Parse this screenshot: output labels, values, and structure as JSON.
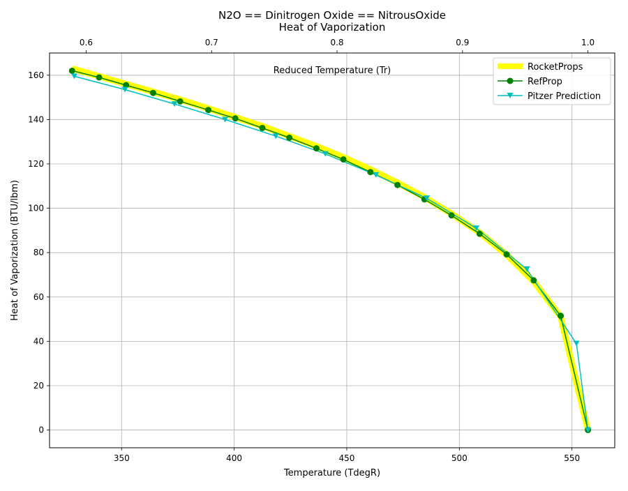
{
  "chart_data": {
    "type": "line",
    "title_line1": "N2O == Dinitrogen Oxide == NitrousOxide",
    "title_line2": "Heat of Vaporization",
    "xlabel": "Temperature (TdegR)",
    "ylabel": "Heat of Vaporization (BTU/lbm)",
    "top_xlabel": "Reduced Temperature (Tr)",
    "xlim": [
      318,
      569
    ],
    "ylim": [
      -8,
      170
    ],
    "x_ticks": [
      350,
      400,
      450,
      500,
      550
    ],
    "y_ticks": [
      0,
      20,
      40,
      60,
      80,
      100,
      120,
      140,
      160
    ],
    "top_x_ticks": [
      0.6,
      0.7,
      0.8,
      0.9,
      1.0
    ],
    "top_x_tick_labels": [
      "0.6",
      "0.7",
      "0.8",
      "0.9",
      "1.0"
    ],
    "reduced_temperature_reference": 557.1,
    "grid": true,
    "legend_position": "top-right",
    "series": [
      {
        "name": "RocketProps",
        "color": "#ffff00",
        "style": "thick-line",
        "x": [
          328.0,
          340.0,
          352.0,
          364.0,
          376.0,
          388.5,
          400.5,
          412.5,
          424.5,
          436.5,
          448.5,
          460.5,
          472.5,
          484.5,
          496.5,
          509.0,
          521.0,
          533.0,
          545.0,
          557.1
        ],
        "y": [
          163,
          159.5,
          156,
          152.5,
          149,
          145,
          141,
          137,
          132.5,
          128,
          123,
          117.5,
          111.5,
          105,
          97.5,
          89,
          79,
          67,
          51,
          0
        ]
      },
      {
        "name": "RefProp",
        "color": "#008000",
        "marker": "circle",
        "x": [
          328.0,
          340.0,
          352.0,
          364.0,
          376.0,
          388.5,
          400.5,
          412.5,
          424.5,
          436.5,
          448.5,
          460.5,
          472.5,
          484.5,
          496.5,
          509.0,
          521.0,
          533.0,
          545.0,
          557.1
        ],
        "y": [
          162,
          159,
          155.5,
          152,
          148.2,
          144.3,
          140.5,
          136.2,
          131.8,
          127,
          122,
          116.3,
          110.5,
          104,
          96.8,
          88.5,
          79.2,
          67.5,
          51.5,
          0
        ]
      },
      {
        "name": "Pitzer Prediction",
        "color": "#00bfbf",
        "marker": "triangle-down",
        "x": [
          329.0,
          351.5,
          373.5,
          396.0,
          418.5,
          440.5,
          463.0,
          485.5,
          507.5,
          530.0,
          552.0,
          557.1
        ],
        "y": [
          159.5,
          153.5,
          147,
          140,
          132.5,
          124.5,
          115,
          104.5,
          91,
          72.5,
          39,
          0
        ]
      }
    ]
  }
}
